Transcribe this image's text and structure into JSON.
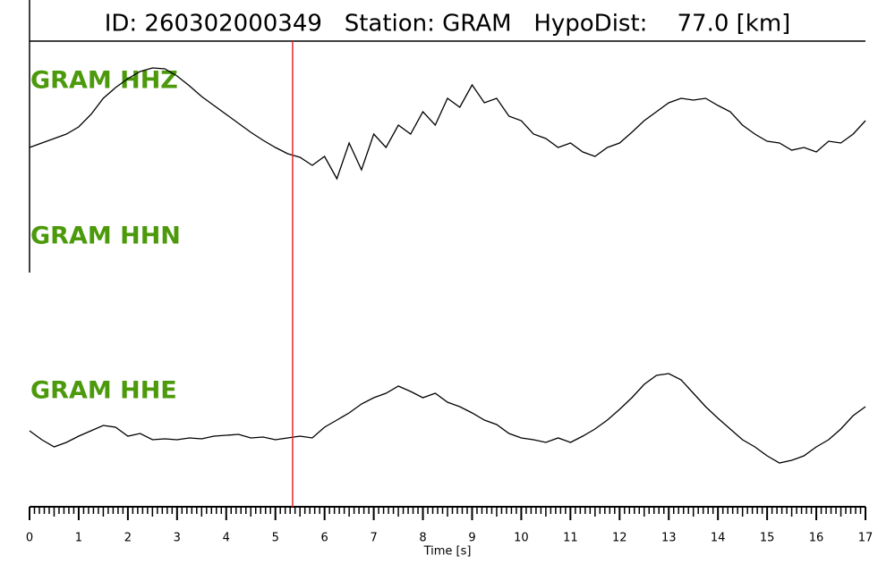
{
  "chart_data": {
    "type": "line",
    "title": "ID: 260302000349   Station: GRAM   HypoDist:    77.0 [km]",
    "xlabel": "Time [s]",
    "xlim": [
      0,
      17
    ],
    "xticks": [
      0,
      1,
      2,
      3,
      4,
      5,
      6,
      7,
      8,
      9,
      10,
      11,
      12,
      13,
      14,
      15,
      16,
      17
    ],
    "xminorticks": [
      0.1,
      0.2,
      0.3,
      0.4,
      0.5,
      0.6,
      0.7,
      0.8,
      0.9,
      1.1,
      1.2,
      1.3,
      1.4,
      1.5,
      1.6,
      1.7,
      1.8,
      1.9,
      2.1,
      2.2,
      2.3,
      2.4,
      2.5,
      2.6,
      2.7,
      2.8,
      2.9,
      3.1,
      3.2,
      3.3,
      3.4,
      3.5,
      3.6,
      3.7,
      3.8,
      3.9,
      4.1,
      4.2,
      4.3,
      4.4,
      4.5,
      4.6,
      4.7,
      4.8,
      4.9,
      5.1,
      5.2,
      5.3,
      5.4,
      5.5,
      5.6,
      5.7,
      5.8,
      5.9,
      6.1,
      6.2,
      6.3,
      6.4,
      6.5,
      6.6,
      6.7,
      6.8,
      6.9,
      7.1,
      7.2,
      7.3,
      7.4,
      7.5,
      7.6,
      7.7,
      7.8,
      7.9,
      8.1,
      8.2,
      8.3,
      8.4,
      8.5,
      8.6,
      8.7,
      8.8,
      8.9,
      9.1,
      9.2,
      9.3,
      9.4,
      9.5,
      9.6,
      9.7,
      9.8,
      9.9,
      10.1,
      10.2,
      10.3,
      10.4,
      10.5,
      10.6,
      10.7,
      10.8,
      10.9,
      11.1,
      11.2,
      11.3,
      11.4,
      11.5,
      11.6,
      11.7,
      11.8,
      11.9,
      12.1,
      12.2,
      12.3,
      12.4,
      12.5,
      12.6,
      12.7,
      12.8,
      12.9,
      13.1,
      13.2,
      13.3,
      13.4,
      13.5,
      13.6,
      13.7,
      13.8,
      13.9,
      14.1,
      14.2,
      14.3,
      14.4,
      14.5,
      14.6,
      14.7,
      14.8,
      14.9,
      15.1,
      15.2,
      15.3,
      15.4,
      15.5,
      15.6,
      15.7,
      15.8,
      15.9,
      16.1,
      16.2,
      16.3,
      16.4,
      16.5,
      16.6,
      16.7,
      16.8,
      16.9
    ],
    "ylim": [
      -90,
      90
    ],
    "pick": 5.35,
    "pick_color": "#e8262a",
    "x": [
      0,
      0.25,
      0.5,
      0.75,
      1,
      1.25,
      1.5,
      1.75,
      2,
      2.25,
      2.5,
      2.75,
      3,
      3.25,
      3.5,
      3.75,
      4,
      4.25,
      4.5,
      4.75,
      5,
      5.25,
      5.5,
      5.75,
      6,
      6.25,
      6.5,
      6.75,
      7,
      7.25,
      7.5,
      7.75,
      8,
      8.25,
      8.5,
      8.75,
      9,
      9.25,
      9.5,
      9.75,
      10,
      10.25,
      10.5,
      10.75,
      11,
      11.25,
      11.5,
      11.75,
      12,
      12.25,
      12.5,
      12.75,
      13,
      13.25,
      13.5,
      13.75,
      14,
      14.25,
      14.5,
      14.75,
      15,
      15.25,
      15.5,
      15.75,
      16,
      16.25,
      16.5,
      16.75,
      17
    ],
    "series": [
      {
        "name": "GRAM HHZ",
        "color": "#000000",
        "values": [
          0,
          5,
          10,
          15,
          23,
          37,
          55,
          67,
          77,
          85,
          89,
          88,
          80,
          69,
          57,
          47,
          37,
          27,
          17,
          8,
          0,
          -7,
          -11,
          -20,
          -10,
          -35,
          5,
          -25,
          15,
          0,
          25,
          15,
          40,
          25,
          55,
          45,
          70,
          50,
          55,
          35,
          30,
          15,
          10,
          0,
          5,
          -5,
          -10,
          0,
          5,
          17,
          30,
          40,
          50,
          55,
          53,
          55,
          47,
          40,
          25,
          15,
          7,
          5,
          -3,
          0,
          -5,
          7,
          5,
          15,
          30
        ]
      },
      {
        "name": "GRAM HHN",
        "color": "#000000",
        "values": [
          null,
          null,
          null,
          null,
          null,
          null,
          null,
          null,
          null,
          null,
          null,
          null,
          null,
          null,
          null,
          null,
          null,
          null,
          null,
          null,
          null,
          null,
          null,
          null,
          null,
          null,
          null,
          null,
          null,
          null,
          null,
          null,
          null,
          null,
          null,
          null,
          null,
          null,
          null,
          null,
          null,
          null,
          null,
          null,
          null,
          null,
          null,
          null,
          null,
          null,
          null,
          null,
          null,
          null,
          null,
          null,
          null,
          null,
          null,
          null,
          null,
          null,
          null,
          null,
          null,
          null,
          null,
          null,
          null
        ]
      },
      {
        "name": "GRAM HHE",
        "color": "#000000",
        "values": [
          8,
          -2,
          -10,
          -5,
          2,
          8,
          14,
          12,
          2,
          5,
          -2,
          -1,
          -2,
          0,
          -1,
          2,
          3,
          4,
          0,
          1,
          -2,
          0,
          2,
          0,
          12,
          20,
          28,
          38,
          45,
          50,
          58,
          52,
          45,
          50,
          40,
          35,
          28,
          20,
          15,
          5,
          0,
          -2,
          -5,
          0,
          -5,
          2,
          10,
          20,
          32,
          45,
          60,
          70,
          72,
          65,
          50,
          35,
          22,
          10,
          -2,
          -10,
          -20,
          -28,
          -25,
          -20,
          -10,
          -2,
          10,
          25,
          35
        ]
      }
    ]
  }
}
